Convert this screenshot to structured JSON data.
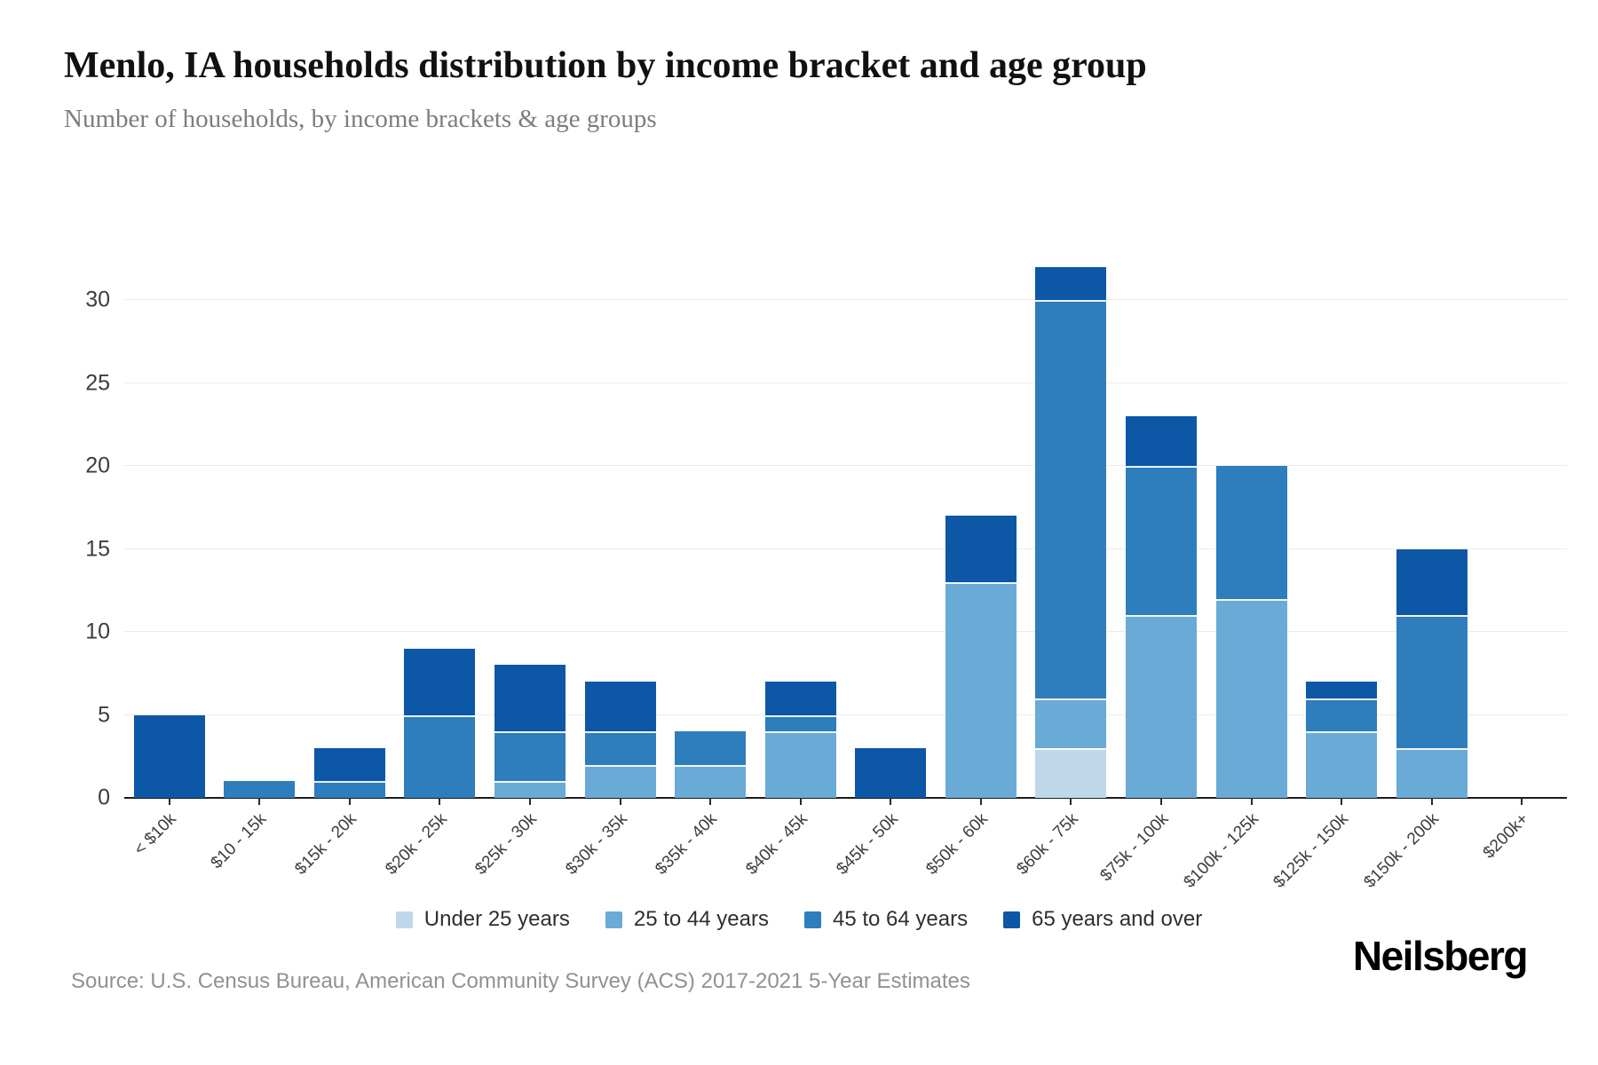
{
  "header": {
    "title": "Menlo, IA households distribution by income bracket and age group",
    "subtitle": "Number of households, by income brackets & age groups"
  },
  "chart_data": {
    "type": "bar",
    "stacked": true,
    "categories": [
      "< $10k",
      "$10 - 15k",
      "$15k - 20k",
      "$20k - 25k",
      "$25k - 30k",
      "$30k - 35k",
      "$35k - 40k",
      "$40k - 45k",
      "$45k - 50k",
      "$50k - 60k",
      "$60k - 75k",
      "$75k - 100k",
      "$100k - 125k",
      "$125k - 150k",
      "$150k - 200k",
      "$200k+"
    ],
    "series": [
      {
        "name": "Under 25 years",
        "color": "#bed8ea",
        "values": [
          0,
          0,
          0,
          0,
          0,
          0,
          0,
          0,
          0,
          0,
          3,
          0,
          0,
          0,
          0,
          0
        ]
      },
      {
        "name": "25 to 44 years",
        "color": "#69aad7",
        "values": [
          0,
          0,
          0,
          0,
          1,
          2,
          2,
          4,
          0,
          13,
          3,
          11,
          12,
          4,
          3,
          0
        ]
      },
      {
        "name": "45 to 64 years",
        "color": "#2e7dbc",
        "values": [
          0,
          1,
          1,
          5,
          3,
          2,
          2,
          1,
          0,
          0,
          24,
          9,
          8,
          2,
          8,
          0
        ]
      },
      {
        "name": "65 years and over",
        "color": "#0d57a7",
        "values": [
          5,
          0,
          2,
          4,
          4,
          3,
          0,
          2,
          3,
          4,
          2,
          3,
          0,
          1,
          4,
          0
        ]
      }
    ],
    "totals": [
      5,
      1,
      3,
      9,
      8,
      7,
      4,
      7,
      3,
      17,
      32,
      23,
      20,
      7,
      15,
      0
    ],
    "title": "Menlo, IA households distribution by income bracket and age group",
    "xlabel": "",
    "ylabel": "",
    "yticks": [
      0,
      5,
      10,
      15,
      20,
      25,
      30
    ],
    "ylim": [
      0,
      35
    ],
    "grid": true,
    "legend_position": "bottom"
  },
  "footer": {
    "source": "Source: U.S. Census Bureau, American Community Survey (ACS) 2017-2021 5-Year Estimates",
    "brand": "Neilsberg"
  }
}
